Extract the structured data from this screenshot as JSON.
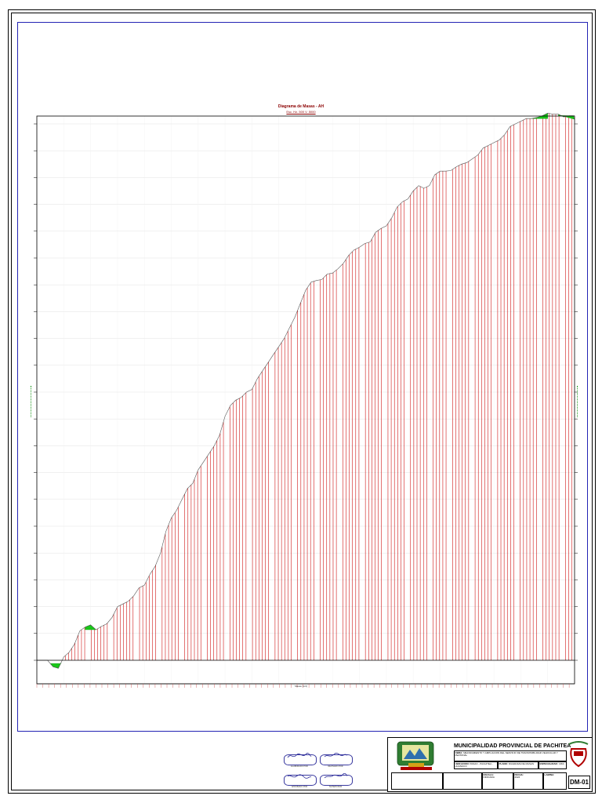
{
  "chart_data": {
    "type": "area",
    "title": "Diagrama de Masas - AH",
    "subtitle": "Esc. Hz. 500 V. 5000",
    "xlabel": "",
    "ylabel": "",
    "x_caption": "Masas (m3)",
    "xlim": [
      0,
      100
    ],
    "ylim": [
      -3,
      100
    ],
    "grid": true,
    "series": [
      {
        "x": [
          0,
          2,
          3,
          4,
          5,
          6,
          7,
          8,
          9,
          10,
          11,
          12,
          13,
          14,
          15,
          16,
          17,
          18,
          19,
          20,
          21,
          22,
          23,
          24,
          25,
          26,
          27,
          28,
          29,
          30,
          31,
          32,
          33,
          34,
          35,
          36,
          37,
          38,
          39,
          40,
          41,
          42,
          43,
          44,
          45,
          46,
          47,
          48,
          49,
          50,
          51,
          52,
          53,
          54,
          55,
          56,
          57,
          58,
          59,
          60,
          61,
          62,
          63,
          64,
          65,
          66,
          67,
          68,
          69,
          70,
          71,
          72,
          73,
          74,
          75,
          76,
          77,
          78,
          79,
          80,
          81,
          82,
          83,
          84,
          85,
          86,
          87,
          88,
          89,
          90,
          91,
          92,
          93,
          94,
          95,
          96,
          97,
          98,
          99,
          100
        ],
        "values": [
          0,
          0,
          -1.2,
          -1.5,
          0.6,
          1.5,
          3,
          5.5,
          6.2,
          6.6,
          5.7,
          6.3,
          6.8,
          8,
          10,
          10.5,
          11,
          12,
          13.5,
          14,
          16,
          17.5,
          20,
          24,
          26.5,
          28,
          30,
          32,
          33,
          35.5,
          37,
          38.5,
          40,
          42,
          45.5,
          47.5,
          48.5,
          49,
          50,
          50.5,
          52.5,
          54,
          55.5,
          57,
          58.5,
          60,
          62,
          64,
          66.5,
          69,
          70.5,
          70.8,
          71,
          72,
          72.2,
          73,
          74,
          75.5,
          76.5,
          77,
          77.7,
          78,
          79.8,
          80.5,
          81,
          82.5,
          84.5,
          85.5,
          86,
          87.5,
          88.5,
          88,
          88.5,
          90.5,
          91.2,
          91.2,
          91.3,
          92,
          92.5,
          92.8,
          93.5,
          94.2,
          95.5,
          96,
          96.5,
          97,
          98,
          99.5,
          100,
          100.5,
          101,
          101,
          101.2,
          101.5,
          102,
          101.8,
          101.8,
          101.3,
          101.5,
          101.5
        ]
      }
    ]
  },
  "signatures": [
    {
      "caption": "ELABORADO POR"
    },
    {
      "caption": "REVISADO POR"
    },
    {
      "caption": "APROBADO POR"
    },
    {
      "caption": "SUPERVISOR"
    }
  ],
  "title_block": {
    "institution": "MUNICIPALIDAD PROVINCIAL DE PACHITEA",
    "project_label": "OBRA:",
    "project": "MEJORAMIENTO Y AMPLIACION DEL SERVICIO DE TRANSITABILIDAD VEHICULAR Y PEATONAL",
    "plan_label": "PLANO:",
    "plan": "DIAGRAMA DE MASAS",
    "location_label": "UBICACION:",
    "location": "PANAO - PACHITEA - HUANUCO",
    "specialty_label": "ESPECIALIDAD:",
    "specialty": "VIAS",
    "scale_label": "ESCALA:",
    "scale": "INDICADA",
    "date_label": "FECHA:",
    "date": "2024",
    "sheet_label": "LAMINA:",
    "sheet": "DM-01",
    "colors": {
      "cut": "#cc0000",
      "fill": "#19c819",
      "frame": "#2323b4"
    }
  }
}
